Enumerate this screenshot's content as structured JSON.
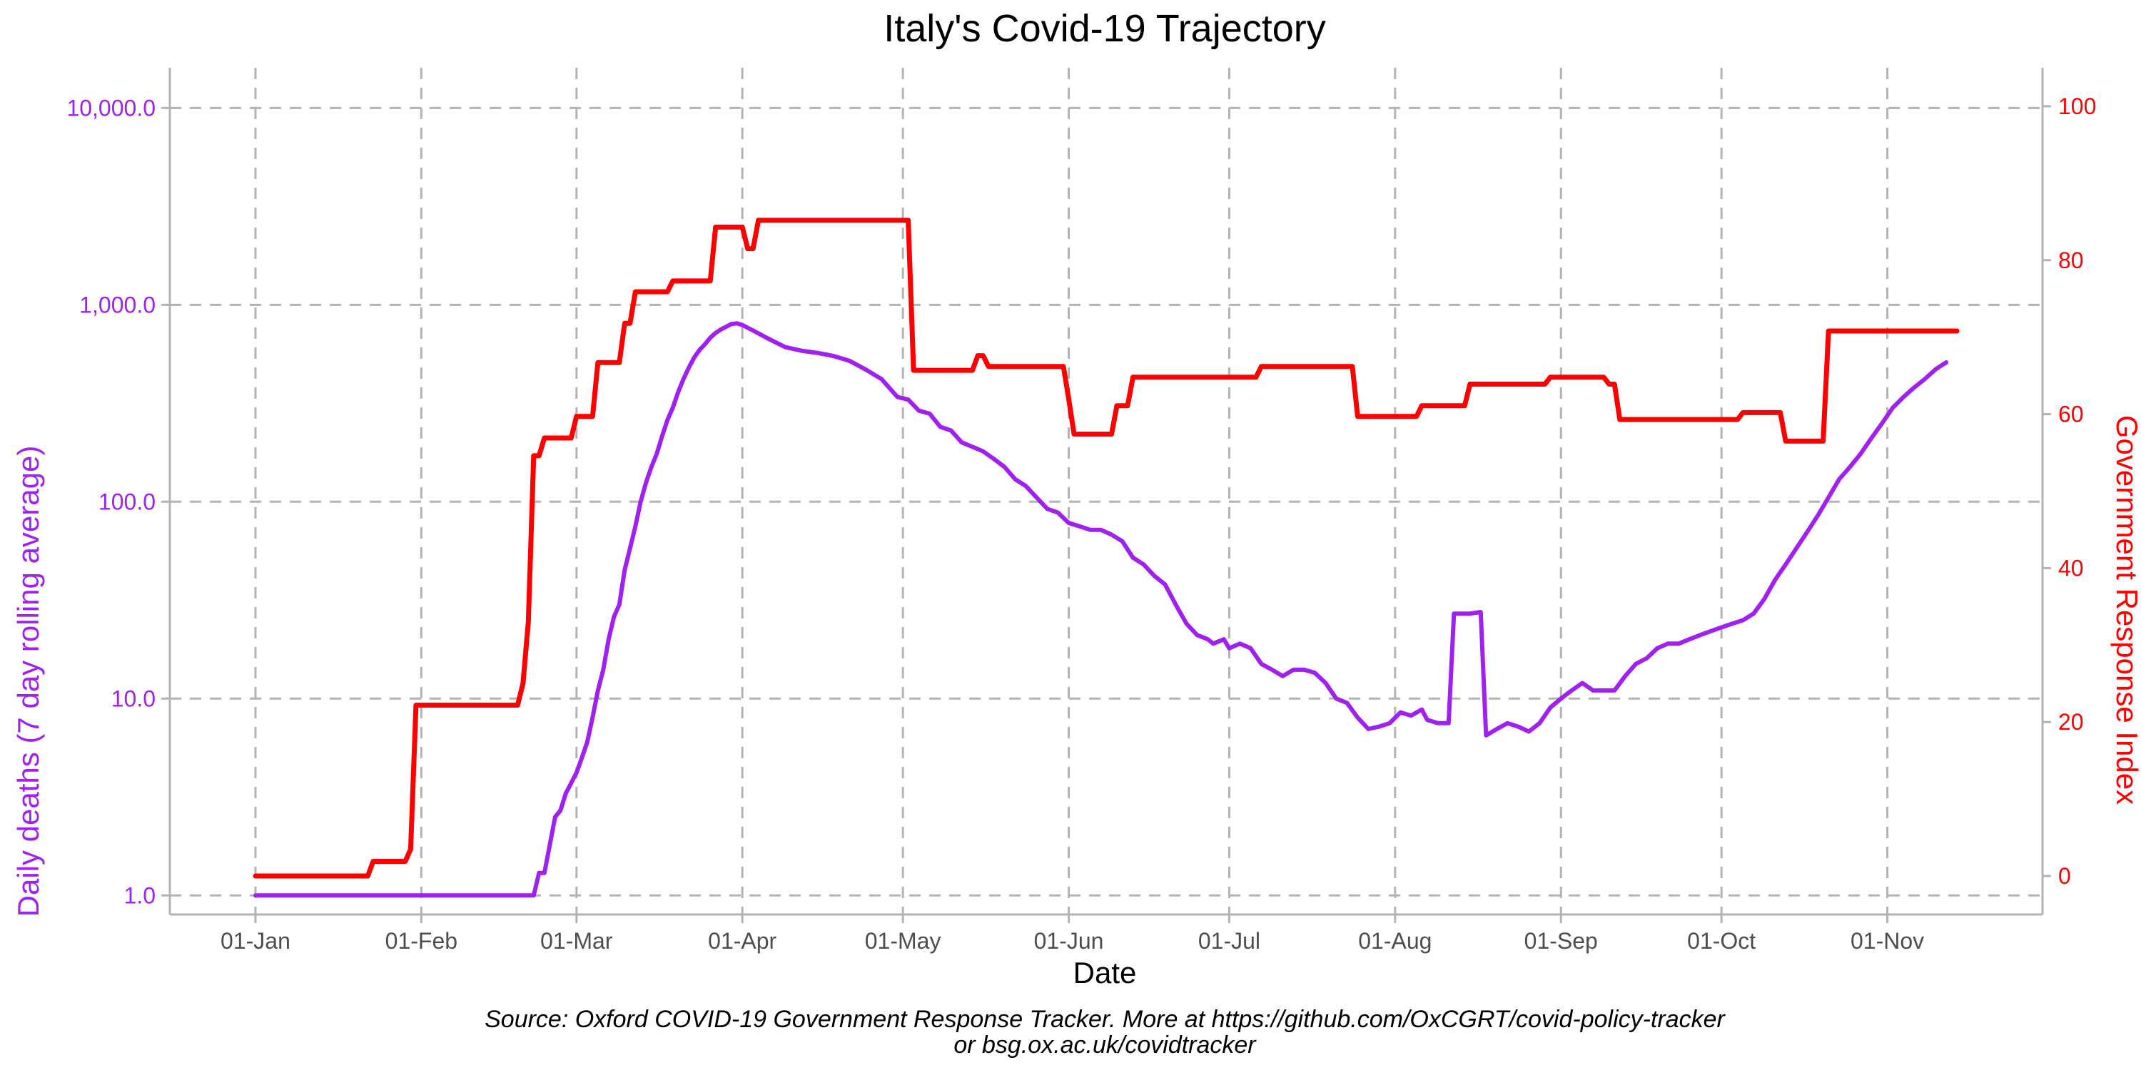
{
  "chart_data": {
    "type": "line",
    "title": "Italy's Covid-19 Trajectory",
    "xlabel": "Date",
    "ylabel_left": "Daily deaths (7 day rolling average)",
    "ylabel_right": "Government Response Index",
    "caption_lines": [
      "Source: Oxford COVID-19 Government Response Tracker. More at https://github.com/OxCGRT/covid-policy-tracker",
      "or bsg.ox.ac.uk/covidtracker"
    ],
    "x_ticks": [
      "01-Jan",
      "01-Feb",
      "01-Mar",
      "01-Apr",
      "01-May",
      "01-Jun",
      "01-Jul",
      "01-Aug",
      "01-Sep",
      "01-Oct",
      "01-Nov"
    ],
    "x_tick_dates": [
      "2020-01-01",
      "2020-02-01",
      "2020-03-01",
      "2020-04-01",
      "2020-05-01",
      "2020-06-01",
      "2020-07-01",
      "2020-08-01",
      "2020-09-01",
      "2020-10-01",
      "2020-11-01"
    ],
    "x_range": [
      "2019-12-16",
      "2020-11-30"
    ],
    "y_left": {
      "scale": "log10",
      "range": [
        0.8,
        16000
      ],
      "ticks": [
        1,
        10,
        100,
        1000,
        10000
      ],
      "tick_labels": [
        "1.0",
        "10.0",
        "100.0",
        "1,000.0",
        "10,000.0"
      ]
    },
    "y_right": {
      "scale": "linear",
      "range": [
        -5,
        105
      ],
      "ticks": [
        0,
        20,
        40,
        60,
        80,
        100
      ],
      "tick_labels": [
        "0",
        "20",
        "40",
        "60",
        "80",
        "100"
      ]
    },
    "grid": true,
    "series": [
      {
        "axis": "left",
        "color": "#a020f0",
        "points": [
          [
            "2020-01-01",
            1
          ],
          [
            "2020-02-22",
            1
          ],
          [
            "2020-02-23",
            1.3
          ],
          [
            "2020-02-24",
            1.3
          ],
          [
            "2020-02-25",
            1.8
          ],
          [
            "2020-02-26",
            2.5
          ],
          [
            "2020-02-27",
            2.7
          ],
          [
            "2020-02-28",
            3.3
          ],
          [
            "2020-03-01",
            4.2
          ],
          [
            "2020-03-02",
            5
          ],
          [
            "2020-03-03",
            6
          ],
          [
            "2020-03-04",
            8
          ],
          [
            "2020-03-05",
            11
          ],
          [
            "2020-03-06",
            14
          ],
          [
            "2020-03-07",
            20
          ],
          [
            "2020-03-08",
            26
          ],
          [
            "2020-03-09",
            30
          ],
          [
            "2020-03-10",
            45
          ],
          [
            "2020-03-11",
            58
          ],
          [
            "2020-03-12",
            75
          ],
          [
            "2020-03-13",
            100
          ],
          [
            "2020-03-14",
            125
          ],
          [
            "2020-03-15",
            150
          ],
          [
            "2020-03-16",
            175
          ],
          [
            "2020-03-17",
            215
          ],
          [
            "2020-03-18",
            260
          ],
          [
            "2020-03-19",
            300
          ],
          [
            "2020-03-20",
            360
          ],
          [
            "2020-03-21",
            420
          ],
          [
            "2020-03-22",
            480
          ],
          [
            "2020-03-23",
            540
          ],
          [
            "2020-03-24",
            590
          ],
          [
            "2020-03-25",
            630
          ],
          [
            "2020-03-26",
            680
          ],
          [
            "2020-03-27",
            720
          ],
          [
            "2020-03-28",
            750
          ],
          [
            "2020-03-29",
            775
          ],
          [
            "2020-03-30",
            800
          ],
          [
            "2020-03-31",
            805
          ],
          [
            "2020-04-01",
            790
          ],
          [
            "2020-04-03",
            740
          ],
          [
            "2020-04-06",
            670
          ],
          [
            "2020-04-09",
            610
          ],
          [
            "2020-04-12",
            585
          ],
          [
            "2020-04-15",
            570
          ],
          [
            "2020-04-18",
            550
          ],
          [
            "2020-04-21",
            520
          ],
          [
            "2020-04-24",
            470
          ],
          [
            "2020-04-27",
            420
          ],
          [
            "2020-04-30",
            340
          ],
          [
            "2020-05-02",
            330
          ],
          [
            "2020-05-04",
            290
          ],
          [
            "2020-05-06",
            280
          ],
          [
            "2020-05-08",
            240
          ],
          [
            "2020-05-10",
            230
          ],
          [
            "2020-05-12",
            200
          ],
          [
            "2020-05-14",
            190
          ],
          [
            "2020-05-16",
            180
          ],
          [
            "2020-05-18",
            165
          ],
          [
            "2020-05-20",
            150
          ],
          [
            "2020-05-22",
            130
          ],
          [
            "2020-05-24",
            120
          ],
          [
            "2020-05-26",
            105
          ],
          [
            "2020-05-28",
            92
          ],
          [
            "2020-05-30",
            88
          ],
          [
            "2020-06-01",
            78
          ],
          [
            "2020-06-03",
            75
          ],
          [
            "2020-06-05",
            72
          ],
          [
            "2020-06-07",
            72
          ],
          [
            "2020-06-09",
            68
          ],
          [
            "2020-06-11",
            63
          ],
          [
            "2020-06-13",
            52
          ],
          [
            "2020-06-15",
            48
          ],
          [
            "2020-06-17",
            42
          ],
          [
            "2020-06-19",
            38
          ],
          [
            "2020-06-21",
            30
          ],
          [
            "2020-06-23",
            24
          ],
          [
            "2020-06-25",
            21
          ],
          [
            "2020-06-27",
            20
          ],
          [
            "2020-06-28",
            19
          ],
          [
            "2020-06-30",
            20
          ],
          [
            "2020-07-01",
            18
          ],
          [
            "2020-07-03",
            19
          ],
          [
            "2020-07-05",
            18
          ],
          [
            "2020-07-07",
            15
          ],
          [
            "2020-07-09",
            14
          ],
          [
            "2020-07-11",
            13
          ],
          [
            "2020-07-13",
            14
          ],
          [
            "2020-07-15",
            14
          ],
          [
            "2020-07-17",
            13.5
          ],
          [
            "2020-07-19",
            12
          ],
          [
            "2020-07-21",
            10
          ],
          [
            "2020-07-23",
            9.5
          ],
          [
            "2020-07-25",
            8
          ],
          [
            "2020-07-27",
            7
          ],
          [
            "2020-07-29",
            7.2
          ],
          [
            "2020-07-31",
            7.5
          ],
          [
            "2020-08-02",
            8.5
          ],
          [
            "2020-08-04",
            8.2
          ],
          [
            "2020-08-06",
            8.8
          ],
          [
            "2020-08-07",
            7.8
          ],
          [
            "2020-08-09",
            7.5
          ],
          [
            "2020-08-11",
            7.5
          ],
          [
            "2020-08-12",
            27
          ],
          [
            "2020-08-15",
            27
          ],
          [
            "2020-08-17",
            27.5
          ],
          [
            "2020-08-18",
            6.5
          ],
          [
            "2020-08-20",
            7
          ],
          [
            "2020-08-22",
            7.5
          ],
          [
            "2020-08-24",
            7.2
          ],
          [
            "2020-08-26",
            6.8
          ],
          [
            "2020-08-28",
            7.5
          ],
          [
            "2020-08-30",
            9
          ],
          [
            "2020-09-01",
            10
          ],
          [
            "2020-09-03",
            11
          ],
          [
            "2020-09-05",
            12
          ],
          [
            "2020-09-07",
            11
          ],
          [
            "2020-09-09",
            11
          ],
          [
            "2020-09-11",
            11
          ],
          [
            "2020-09-13",
            13
          ],
          [
            "2020-09-15",
            15
          ],
          [
            "2020-09-17",
            16
          ],
          [
            "2020-09-19",
            18
          ],
          [
            "2020-09-21",
            19
          ],
          [
            "2020-09-23",
            19
          ],
          [
            "2020-09-25",
            20
          ],
          [
            "2020-09-27",
            21
          ],
          [
            "2020-09-29",
            22
          ],
          [
            "2020-10-01",
            23
          ],
          [
            "2020-10-03",
            24
          ],
          [
            "2020-10-05",
            25
          ],
          [
            "2020-10-07",
            27
          ],
          [
            "2020-10-09",
            32
          ],
          [
            "2020-10-11",
            40
          ],
          [
            "2020-10-13",
            48
          ],
          [
            "2020-10-15",
            58
          ],
          [
            "2020-10-17",
            70
          ],
          [
            "2020-10-19",
            85
          ],
          [
            "2020-10-21",
            105
          ],
          [
            "2020-10-23",
            130
          ],
          [
            "2020-10-25",
            150
          ],
          [
            "2020-10-27",
            175
          ],
          [
            "2020-10-29",
            210
          ],
          [
            "2020-10-31",
            250
          ],
          [
            "2020-11-02",
            300
          ],
          [
            "2020-11-04",
            340
          ],
          [
            "2020-11-06",
            380
          ],
          [
            "2020-11-08",
            420
          ],
          [
            "2020-11-10",
            470
          ],
          [
            "2020-11-12",
            510
          ]
        ]
      },
      {
        "axis": "right",
        "color": "#ff0000",
        "points": [
          [
            "2020-01-01",
            0
          ],
          [
            "2020-01-22",
            0
          ],
          [
            "2020-01-23",
            1.9
          ],
          [
            "2020-01-29",
            1.9
          ],
          [
            "2020-01-30",
            3.5
          ],
          [
            "2020-01-31",
            22.2
          ],
          [
            "2020-02-19",
            22.2
          ],
          [
            "2020-02-20",
            25
          ],
          [
            "2020-02-21",
            33
          ],
          [
            "2020-02-22",
            54.6
          ],
          [
            "2020-02-23",
            54.6
          ],
          [
            "2020-02-24",
            56.9
          ],
          [
            "2020-02-29",
            56.9
          ],
          [
            "2020-03-01",
            59.7
          ],
          [
            "2020-03-04",
            59.7
          ],
          [
            "2020-03-05",
            66.7
          ],
          [
            "2020-03-09",
            66.7
          ],
          [
            "2020-03-10",
            71.8
          ],
          [
            "2020-03-11",
            71.8
          ],
          [
            "2020-03-12",
            75.9
          ],
          [
            "2020-03-18",
            75.9
          ],
          [
            "2020-03-19",
            77.3
          ],
          [
            "2020-03-26",
            77.3
          ],
          [
            "2020-03-27",
            84.3
          ],
          [
            "2020-04-01",
            84.3
          ],
          [
            "2020-04-02",
            81.5
          ],
          [
            "2020-04-03",
            81.5
          ],
          [
            "2020-04-04",
            85.2
          ],
          [
            "2020-05-02",
            85.2
          ],
          [
            "2020-05-03",
            65.7
          ],
          [
            "2020-05-14",
            65.7
          ],
          [
            "2020-05-15",
            67.6
          ],
          [
            "2020-05-16",
            67.6
          ],
          [
            "2020-05-17",
            66.2
          ],
          [
            "2020-05-31",
            66.2
          ],
          [
            "2020-06-01",
            62
          ],
          [
            "2020-06-02",
            57.4
          ],
          [
            "2020-06-09",
            57.4
          ],
          [
            "2020-06-10",
            61.1
          ],
          [
            "2020-06-12",
            61.1
          ],
          [
            "2020-06-13",
            64.8
          ],
          [
            "2020-07-06",
            64.8
          ],
          [
            "2020-07-07",
            66.2
          ],
          [
            "2020-07-24",
            66.2
          ],
          [
            "2020-07-25",
            59.7
          ],
          [
            "2020-08-05",
            59.7
          ],
          [
            "2020-08-06",
            61.1
          ],
          [
            "2020-08-14",
            61.1
          ],
          [
            "2020-08-15",
            63.9
          ],
          [
            "2020-08-29",
            63.9
          ],
          [
            "2020-08-30",
            64.8
          ],
          [
            "2020-09-09",
            64.8
          ],
          [
            "2020-09-10",
            63.9
          ],
          [
            "2020-09-11",
            63.9
          ],
          [
            "2020-09-12",
            59.3
          ],
          [
            "2020-10-04",
            59.3
          ],
          [
            "2020-10-05",
            60.2
          ],
          [
            "2020-10-12",
            60.2
          ],
          [
            "2020-10-13",
            56.5
          ],
          [
            "2020-10-20",
            56.5
          ],
          [
            "2020-10-21",
            70.8
          ],
          [
            "2020-11-14",
            70.8
          ]
        ]
      }
    ]
  }
}
